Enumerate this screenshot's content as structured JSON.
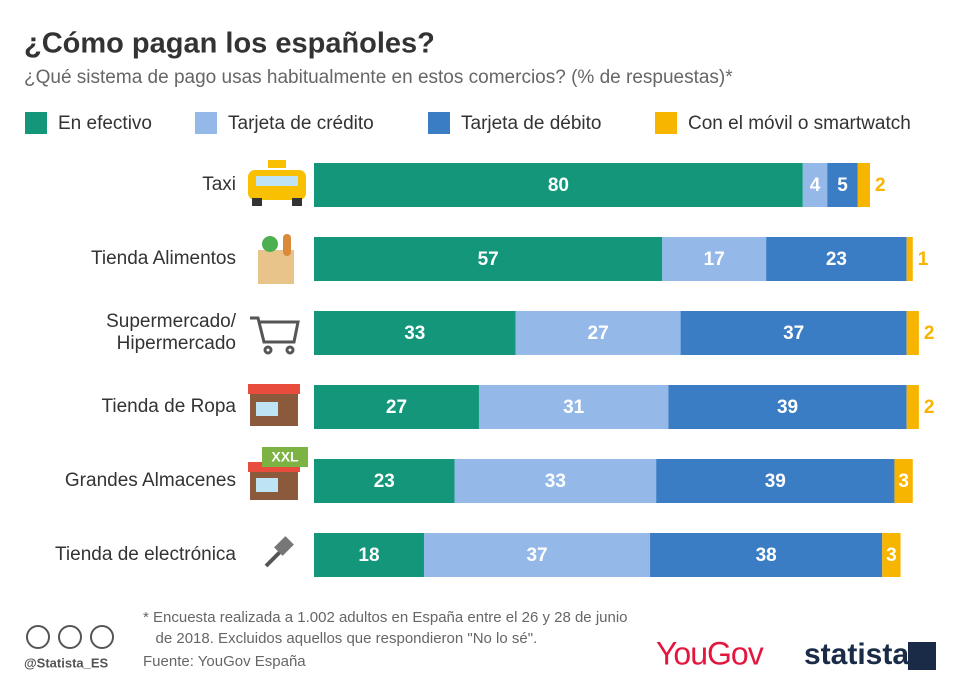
{
  "chart_data": {
    "type": "stacked_bar_horizontal",
    "title": "¿Cómo pagan los españoles?",
    "subtitle": "¿Qué sistema de pago usas habitualmente en estos comercios? (% de respuestas)*",
    "categories": [
      "Taxi",
      "Tienda Alimentos",
      "Supermercado/\nHipermercado",
      "Tienda de Ropa",
      "Grandes Almacenes",
      "Tienda de electrónica"
    ],
    "series": [
      {
        "name": "En efectivo",
        "color": "#13967a",
        "values": [
          80,
          57,
          33,
          27,
          23,
          18
        ]
      },
      {
        "name": "Tarjeta de crédito",
        "color": "#94b8e8",
        "values": [
          4,
          17,
          27,
          31,
          33,
          37
        ]
      },
      {
        "name": "Tarjeta de débito",
        "color": "#3a7dc4",
        "values": [
          5,
          23,
          37,
          39,
          39,
          38
        ]
      },
      {
        "name": "Con el móvil o smartwatch",
        "color": "#f8b500",
        "values": [
          2,
          1,
          2,
          2,
          3,
          3
        ]
      }
    ],
    "xlim": [
      0,
      100
    ],
    "badge": "XXL",
    "footnote": "* Encuesta realizada a 1.002 adultos en España entre el 26 y 28 de junio\n   de 2018. Excluidos aquellos que respondieron \"No lo sé\".",
    "source": "Fuente: YouGov España",
    "handle": "@Statista_ES",
    "logos": [
      "YouGov",
      "statista"
    ]
  }
}
